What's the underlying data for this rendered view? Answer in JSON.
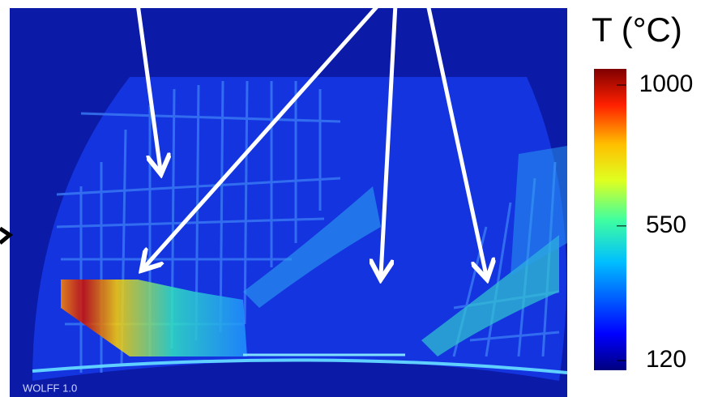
{
  "image": {
    "watermark": "WOLFF 1.0"
  },
  "colorbar": {
    "title": "T (°C)",
    "range": [
      120,
      1000
    ],
    "ticks": [
      1000,
      550,
      120
    ]
  }
}
